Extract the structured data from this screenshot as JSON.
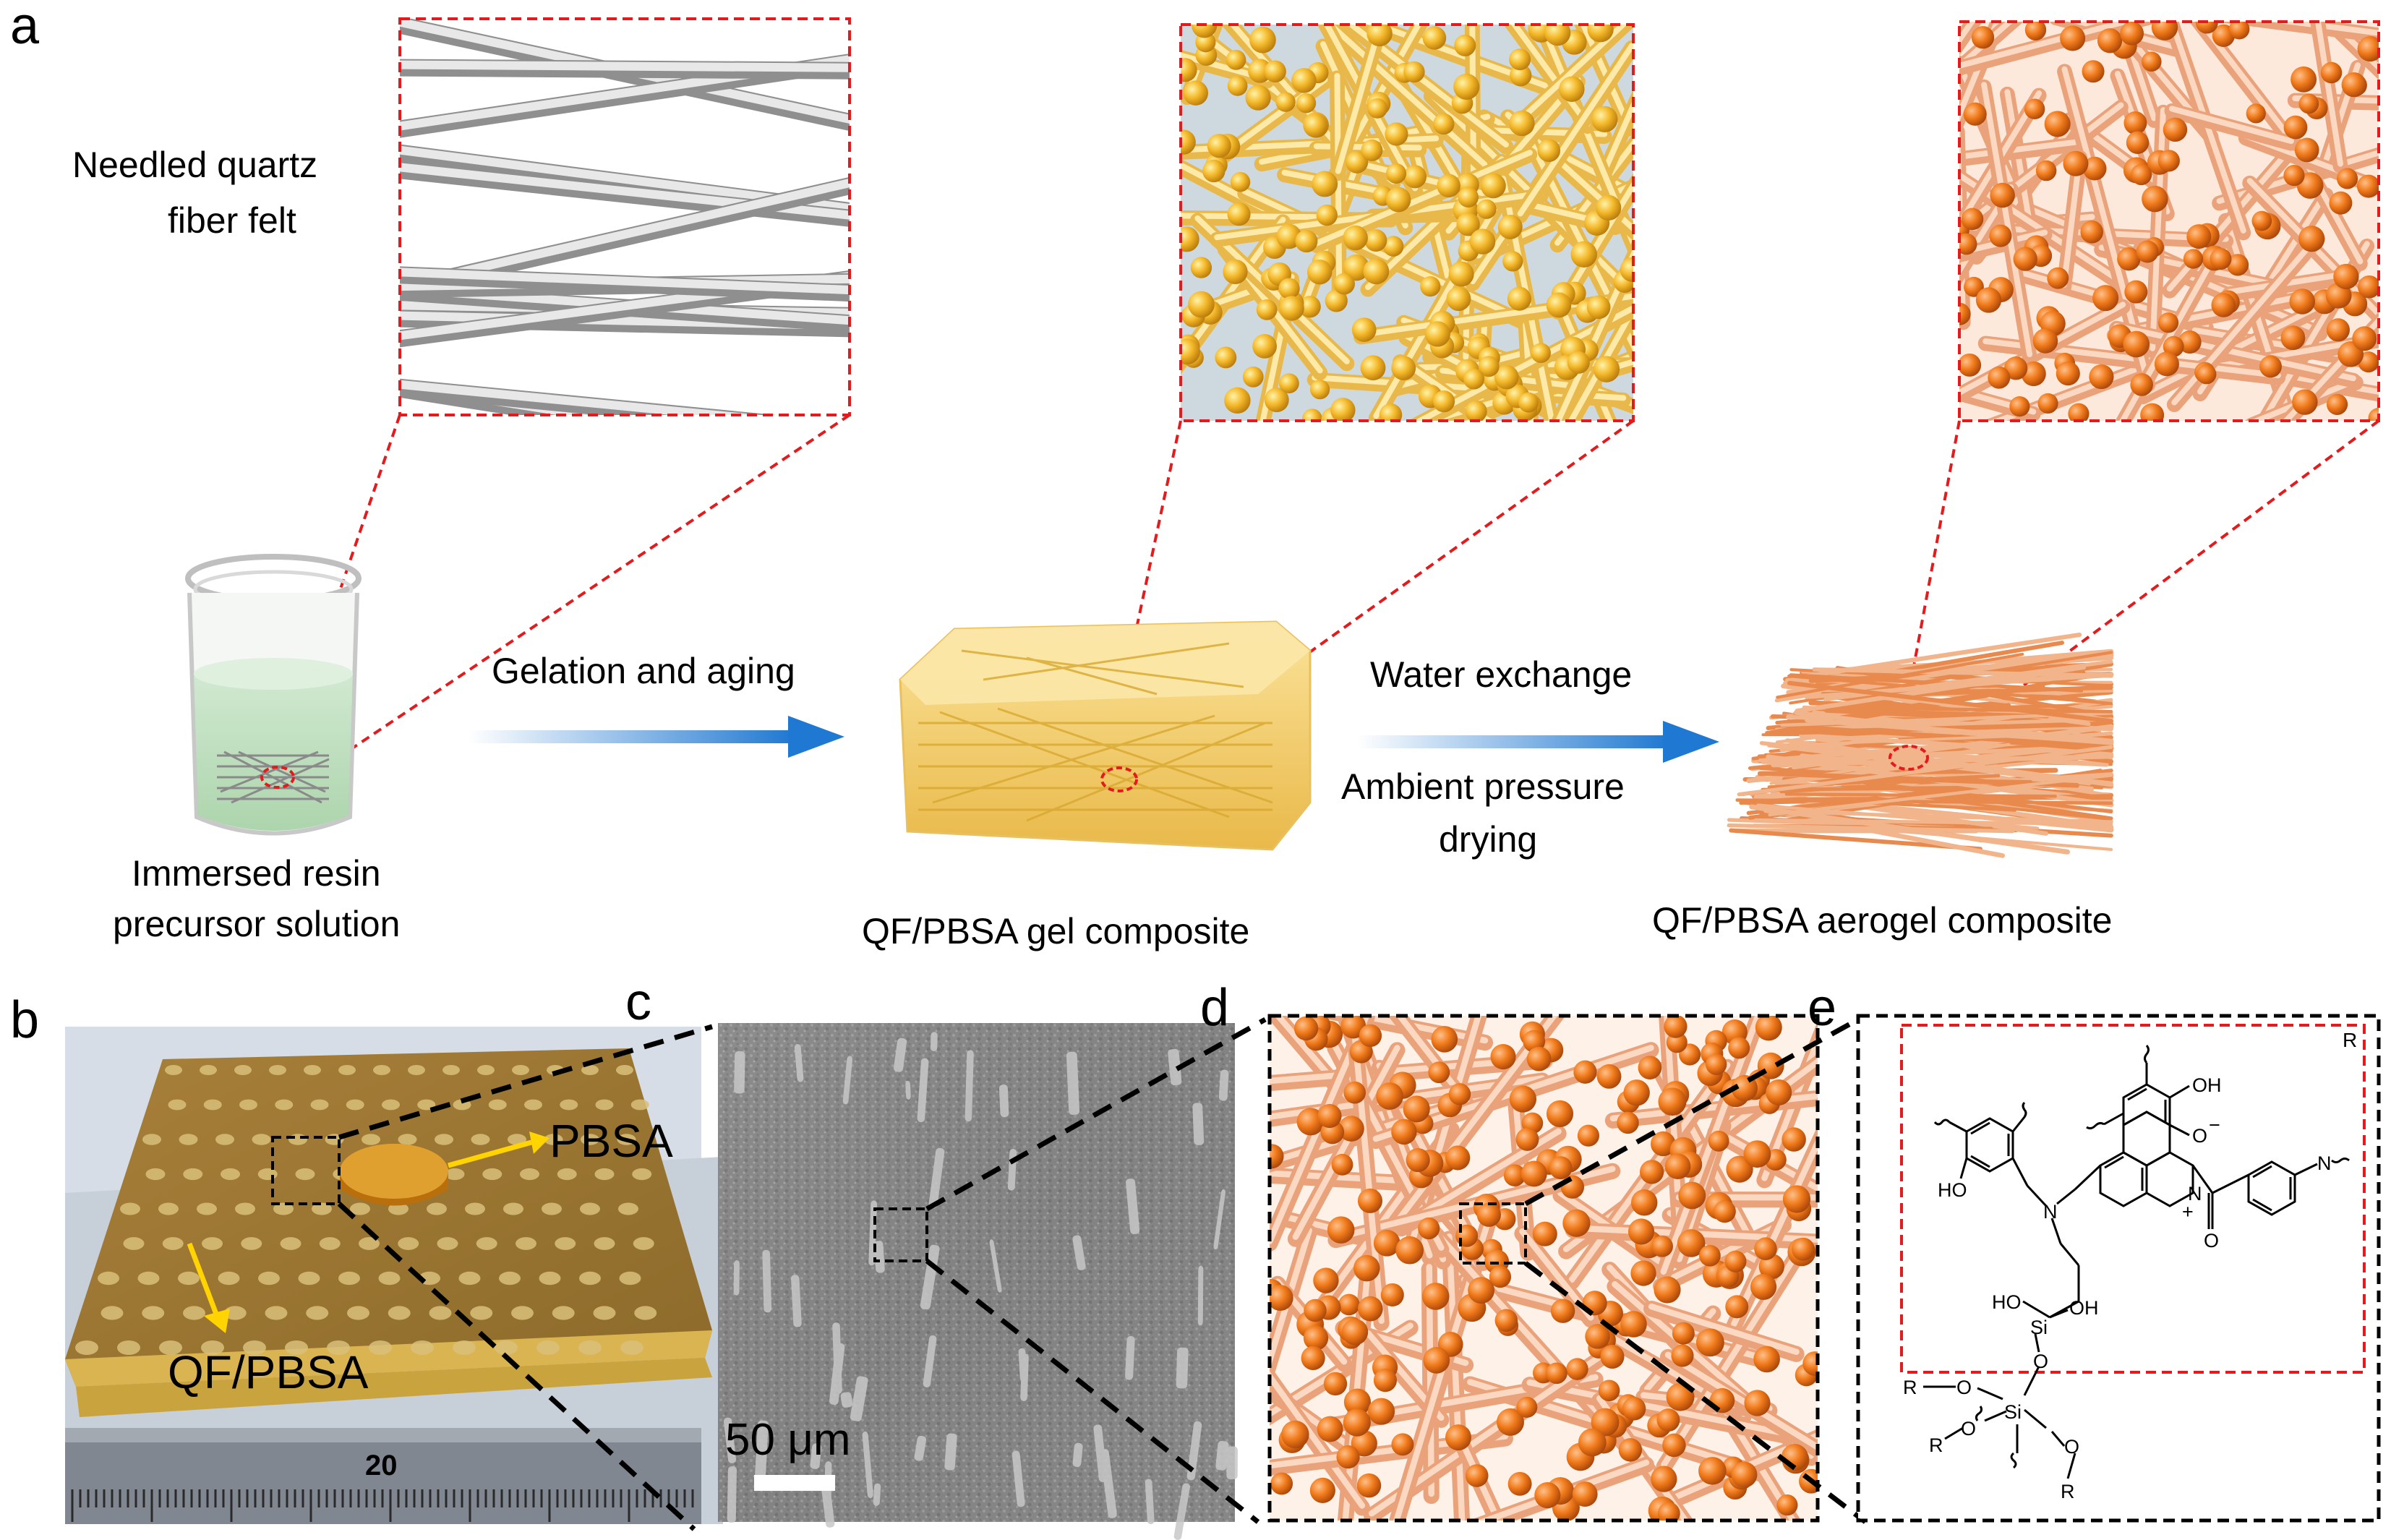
{
  "panels": {
    "a": "a",
    "b": "b",
    "c": "c",
    "d": "d",
    "e": "e"
  },
  "panel_a": {
    "felt_label_line1": "Needled quartz",
    "felt_label_line2": "fiber felt",
    "beaker_label_line1": "Immersed resin",
    "beaker_label_line2": "precursor solution",
    "arrow1_label": "Gelation and aging",
    "gel_label": "QF/PBSA gel composite",
    "arrow2_label_top": "Water exchange",
    "arrow2_label_bottom_line1": "Ambient pressure",
    "arrow2_label_bottom_line2": "drying",
    "aerogel_label": "QF/PBSA aerogel composite"
  },
  "panel_b": {
    "pbsa_label": "PBSA",
    "qf_label": "QF/PBSA",
    "ruler_mark": "20"
  },
  "panel_c": {
    "scale_bar": "50 μm"
  },
  "panel_e": {
    "box_label": "R",
    "atoms": {
      "oh_top": "OH",
      "o_minus": "O",
      "minus_sign": "−",
      "plus_sign": "+",
      "ho_left": "HO",
      "n_amine": "N",
      "n_pyridinium": "N",
      "n_right": "N",
      "o_carbonyl": "O",
      "ho_si": "HO",
      "si_top": "Si",
      "oh_si": "OH",
      "o_si_link": "O",
      "si_bottom": "Si",
      "r_o_left": "R",
      "o_left": "O",
      "o_left2": "O",
      "r_bottom_left": "R",
      "o_bottom_right": "O",
      "r_bottom_right": "R"
    }
  },
  "colors": {
    "dashed_red": "#e41a1c",
    "arrow_blue": "#1f78d1",
    "fiber_gray": "#c9c9c9",
    "gel_yellow": "#f4c94a",
    "particle_orange": "#f07a1a",
    "fiber_peach": "#f2b48a",
    "sem_gray": "#8a8a8a",
    "felt_brown": "#b08a3c"
  }
}
